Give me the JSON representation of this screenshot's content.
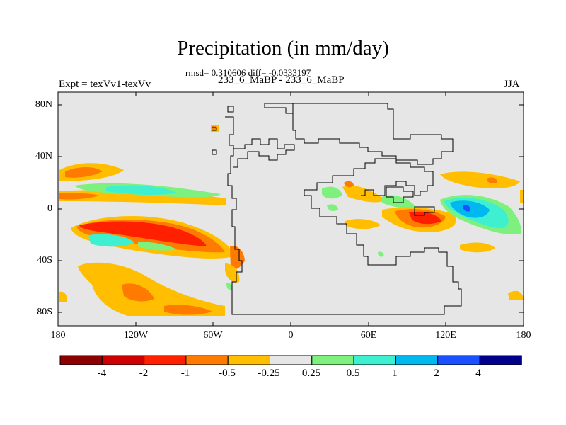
{
  "title": "Precipitation (in mm/day)",
  "stats": "rmsd= 0.310606 diff= -0.0333197",
  "expt": "Expt = texVv1-texVv",
  "cases": "233_6_MaBP - 233_6_MaBP",
  "season": "JJA",
  "lat_labels": [
    "80N",
    "40N",
    "0",
    "40S",
    "80S"
  ],
  "lon_labels": [
    "180",
    "120W",
    "60W",
    "0",
    "60E",
    "120E",
    "180"
  ],
  "colorbar": {
    "labels": [
      "-4",
      "-2",
      "-1",
      "-0.5",
      "-0.25",
      "0.25",
      "0.5",
      "1",
      "2",
      "4"
    ],
    "colors": [
      "#8b0000",
      "#cc0000",
      "#ff2000",
      "#ff7a00",
      "#ffbf00",
      "#e6e6e6",
      "#7ef07e",
      "#3ef0d0",
      "#00b8f0",
      "#1a50ff",
      "#00008b"
    ]
  },
  "colors": {
    "land_background": "#e6e6e6",
    "coastline": "#000000"
  }
}
